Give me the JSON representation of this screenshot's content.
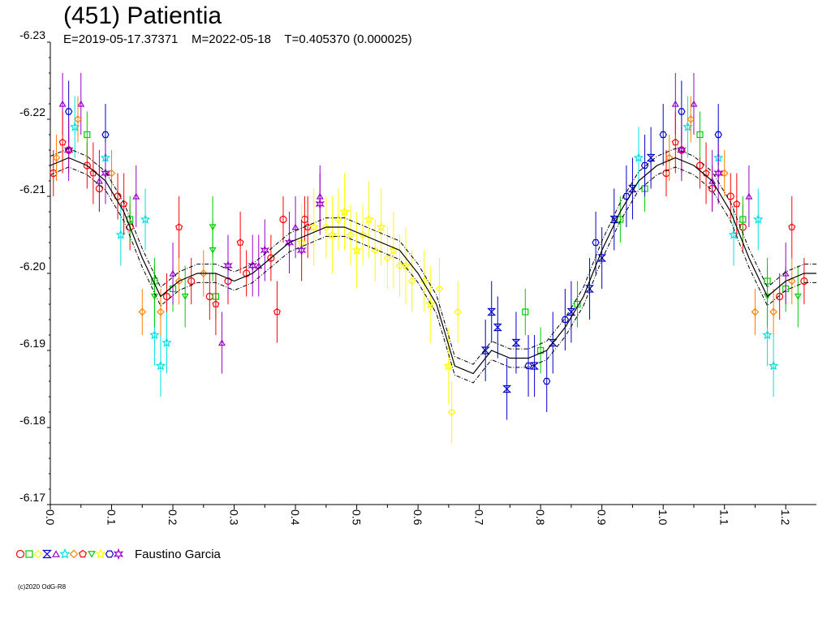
{
  "title": "(451) Patientia",
  "subtitle": "E=2019-05-17.37371    M=2022-05-18    T=0.405370 (0.000025)",
  "legend": {
    "observer": "Faustino Garcia",
    "symbols": [
      {
        "shape": "circle",
        "color": "#ff0000"
      },
      {
        "shape": "square",
        "color": "#00cc00"
      },
      {
        "shape": "diamond",
        "color": "#ffff00"
      },
      {
        "shape": "hourglass",
        "color": "#0000cc"
      },
      {
        "shape": "triangle",
        "color": "#9900cc"
      },
      {
        "shape": "star",
        "color": "#00e0e0"
      },
      {
        "shape": "diamond",
        "color": "#ff8000"
      },
      {
        "shape": "pentagon",
        "color": "#ff0000"
      },
      {
        "shape": "triangle-down",
        "color": "#00cc00"
      },
      {
        "shape": "star",
        "color": "#ffff00"
      },
      {
        "shape": "hexagon",
        "color": "#0000cc"
      },
      {
        "shape": "star6",
        "color": "#9900cc"
      }
    ]
  },
  "credit": "(c)2020 OdG-R8",
  "chart_data": {
    "type": "scatter",
    "title": "(451) Patientia",
    "xlabel": "",
    "ylabel": "",
    "xlim": [
      0.0,
      1.25
    ],
    "ylim": [
      -6.23,
      -6.17
    ],
    "y_inverted": true,
    "x_ticks": [
      "0.0",
      "0.1",
      "0.2",
      "0.3",
      "0.4",
      "0.5",
      "0.6",
      "0.7",
      "0.8",
      "0.9",
      "1.0",
      "1.1",
      "1.2"
    ],
    "y_ticks": [
      "-6.23",
      "-6.22",
      "-6.21",
      "-6.20",
      "-6.19",
      "-6.18",
      "-6.17"
    ],
    "grid": false,
    "fit_curve": {
      "x": [
        0.0,
        0.03,
        0.06,
        0.09,
        0.12,
        0.15,
        0.18,
        0.21,
        0.24,
        0.27,
        0.3,
        0.33,
        0.36,
        0.39,
        0.42,
        0.45,
        0.48,
        0.51,
        0.54,
        0.57,
        0.6,
        0.63,
        0.66,
        0.69,
        0.72,
        0.75,
        0.78,
        0.81,
        0.84,
        0.87,
        0.9,
        0.93,
        0.96,
        0.99,
        1.02,
        1.05,
        1.08,
        1.11,
        1.14,
        1.17,
        1.2,
        1.23,
        1.25
      ],
      "y": [
        -6.214,
        -6.215,
        -6.214,
        -6.212,
        -6.208,
        -6.202,
        -6.197,
        -6.199,
        -6.2,
        -6.2,
        -6.199,
        -6.2,
        -6.202,
        -6.204,
        -6.205,
        -6.206,
        -6.206,
        -6.205,
        -6.204,
        -6.203,
        -6.2,
        -6.196,
        -6.188,
        -6.187,
        -6.19,
        -6.189,
        -6.189,
        -6.19,
        -6.193,
        -6.197,
        -6.203,
        -6.208,
        -6.212,
        -6.214,
        -6.215,
        -6.214,
        -6.212,
        -6.208,
        -6.202,
        -6.197,
        -6.199,
        -6.2,
        -6.2
      ],
      "band": 0.0012
    },
    "series": [
      {
        "shape": "circle",
        "color": "#ff0000",
        "points": [
          [
            0.005,
            -6.213
          ],
          [
            0.03,
            -6.216
          ],
          [
            0.06,
            -6.214
          ],
          [
            0.08,
            -6.211
          ],
          [
            0.11,
            -6.21
          ],
          [
            0.13,
            -6.206
          ],
          [
            0.19,
            -6.197
          ],
          [
            0.23,
            -6.199
          ],
          [
            0.26,
            -6.197
          ],
          [
            0.29,
            -6.199
          ],
          [
            0.32,
            -6.2
          ],
          [
            0.36,
            -6.202
          ],
          [
            0.38,
            -6.207
          ],
          [
            0.415,
            -6.207
          ],
          [
            1.005,
            -6.213
          ],
          [
            1.03,
            -6.216
          ],
          [
            1.06,
            -6.214
          ],
          [
            1.08,
            -6.211
          ],
          [
            1.11,
            -6.21
          ],
          [
            1.13,
            -6.206
          ],
          [
            1.19,
            -6.197
          ],
          [
            1.23,
            -6.199
          ]
        ],
        "err": 0.003
      },
      {
        "shape": "square",
        "color": "#00cc00",
        "points": [
          [
            0.06,
            -6.218
          ],
          [
            0.13,
            -6.207
          ],
          [
            0.17,
            -6.199
          ],
          [
            0.2,
            -6.198
          ],
          [
            0.27,
            -6.197
          ],
          [
            0.775,
            -6.195
          ],
          [
            0.8,
            -6.19
          ],
          [
            0.86,
            -6.196
          ],
          [
            0.93,
            -6.207
          ],
          [
            0.97,
            -6.211
          ],
          [
            1.06,
            -6.218
          ],
          [
            1.13,
            -6.207
          ],
          [
            1.17,
            -6.199
          ],
          [
            1.2,
            -6.198
          ]
        ],
        "err": 0.003
      },
      {
        "shape": "diamond",
        "color": "#ffff00",
        "points": [
          [
            0.45,
            -6.206
          ],
          [
            0.47,
            -6.207
          ],
          [
            0.49,
            -6.205
          ],
          [
            0.51,
            -6.205
          ],
          [
            0.53,
            -6.203
          ],
          [
            0.55,
            -6.202
          ],
          [
            0.57,
            -6.201
          ],
          [
            0.59,
            -6.199
          ],
          [
            0.61,
            -6.199
          ],
          [
            0.635,
            -6.198
          ],
          [
            0.655,
            -6.182
          ],
          [
            0.665,
            -6.195
          ]
        ],
        "err": 0.004
      },
      {
        "shape": "hourglass",
        "color": "#0000cc",
        "points": [
          [
            0.71,
            -6.19
          ],
          [
            0.72,
            -6.195
          ],
          [
            0.73,
            -6.193
          ],
          [
            0.745,
            -6.185
          ],
          [
            0.76,
            -6.191
          ],
          [
            0.79,
            -6.188
          ],
          [
            0.82,
            -6.191
          ],
          [
            0.85,
            -6.195
          ],
          [
            0.88,
            -6.198
          ],
          [
            0.9,
            -6.202
          ],
          [
            0.92,
            -6.207
          ],
          [
            0.95,
            -6.211
          ],
          [
            0.98,
            -6.215
          ]
        ],
        "err": 0.004
      },
      {
        "shape": "triangle",
        "color": "#9900cc",
        "points": [
          [
            0.02,
            -6.222
          ],
          [
            0.05,
            -6.222
          ],
          [
            0.08,
            -6.212
          ],
          [
            0.14,
            -6.21
          ],
          [
            0.2,
            -6.2
          ],
          [
            0.28,
            -6.191
          ],
          [
            0.34,
            -6.201
          ],
          [
            0.4,
            -6.206
          ],
          [
            0.44,
            -6.21
          ],
          [
            1.02,
            -6.222
          ],
          [
            1.05,
            -6.222
          ],
          [
            1.08,
            -6.212
          ],
          [
            1.14,
            -6.21
          ],
          [
            1.2,
            -6.2
          ]
        ],
        "err": 0.004
      },
      {
        "shape": "star",
        "color": "#00e0e0",
        "points": [
          [
            0.04,
            -6.219
          ],
          [
            0.09,
            -6.215
          ],
          [
            0.115,
            -6.205
          ],
          [
            0.155,
            -6.207
          ],
          [
            0.17,
            -6.192
          ],
          [
            0.18,
            -6.188
          ],
          [
            0.19,
            -6.191
          ],
          [
            0.96,
            -6.215
          ],
          [
            1.04,
            -6.219
          ],
          [
            1.09,
            -6.215
          ],
          [
            1.115,
            -6.205
          ],
          [
            1.155,
            -6.207
          ],
          [
            1.17,
            -6.192
          ],
          [
            1.18,
            -6.188
          ]
        ],
        "err": 0.004
      },
      {
        "shape": "diamond",
        "color": "#ff8000",
        "points": [
          [
            0.01,
            -6.215
          ],
          [
            0.045,
            -6.22
          ],
          [
            0.1,
            -6.213
          ],
          [
            0.15,
            -6.195
          ],
          [
            0.18,
            -6.195
          ],
          [
            0.21,
            -6.199
          ],
          [
            0.25,
            -6.2
          ],
          [
            1.01,
            -6.215
          ],
          [
            1.045,
            -6.22
          ],
          [
            1.1,
            -6.213
          ],
          [
            1.15,
            -6.195
          ],
          [
            1.18,
            -6.195
          ],
          [
            1.21,
            -6.199
          ]
        ],
        "err": 0.003
      },
      {
        "shape": "pentagon",
        "color": "#ff0000",
        "points": [
          [
            0.02,
            -6.217
          ],
          [
            0.07,
            -6.213
          ],
          [
            0.12,
            -6.209
          ],
          [
            0.21,
            -6.206
          ],
          [
            0.27,
            -6.196
          ],
          [
            0.31,
            -6.204
          ],
          [
            0.37,
            -6.195
          ],
          [
            0.42,
            -6.206
          ],
          [
            1.02,
            -6.217
          ],
          [
            1.07,
            -6.213
          ],
          [
            1.12,
            -6.209
          ],
          [
            1.21,
            -6.206
          ]
        ],
        "err": 0.004
      },
      {
        "shape": "triangle-down",
        "color": "#00cc00",
        "points": [
          [
            0.17,
            -6.197
          ],
          [
            0.22,
            -6.197
          ],
          [
            0.265,
            -6.203
          ],
          [
            0.265,
            -6.206
          ],
          [
            1.17,
            -6.197
          ],
          [
            1.22,
            -6.197
          ]
        ],
        "err": 0.004
      },
      {
        "shape": "star",
        "color": "#ffff00",
        "points": [
          [
            0.41,
            -6.204
          ],
          [
            0.43,
            -6.206
          ],
          [
            0.46,
            -6.205
          ],
          [
            0.48,
            -6.208
          ],
          [
            0.5,
            -6.203
          ],
          [
            0.52,
            -6.207
          ],
          [
            0.54,
            -6.206
          ],
          [
            0.56,
            -6.203
          ],
          [
            0.58,
            -6.201
          ],
          [
            0.62,
            -6.196
          ],
          [
            0.65,
            -6.188
          ]
        ],
        "err": 0.005
      },
      {
        "shape": "hexagon",
        "color": "#0000cc",
        "points": [
          [
            0.03,
            -6.221
          ],
          [
            0.09,
            -6.218
          ],
          [
            0.78,
            -6.188
          ],
          [
            0.81,
            -6.186
          ],
          [
            0.84,
            -6.194
          ],
          [
            0.89,
            -6.204
          ],
          [
            0.94,
            -6.21
          ],
          [
            0.97,
            -6.214
          ],
          [
            1.0,
            -6.218
          ],
          [
            1.03,
            -6.221
          ],
          [
            1.09,
            -6.218
          ]
        ],
        "err": 0.004
      },
      {
        "shape": "star6",
        "color": "#9900cc",
        "points": [
          [
            0.03,
            -6.216
          ],
          [
            0.09,
            -6.213
          ],
          [
            0.29,
            -6.201
          ],
          [
            0.33,
            -6.201
          ],
          [
            0.35,
            -6.203
          ],
          [
            0.39,
            -6.204
          ],
          [
            0.41,
            -6.203
          ],
          [
            0.44,
            -6.209
          ],
          [
            1.03,
            -6.216
          ],
          [
            1.09,
            -6.213
          ]
        ],
        "err": 0.004
      }
    ]
  }
}
